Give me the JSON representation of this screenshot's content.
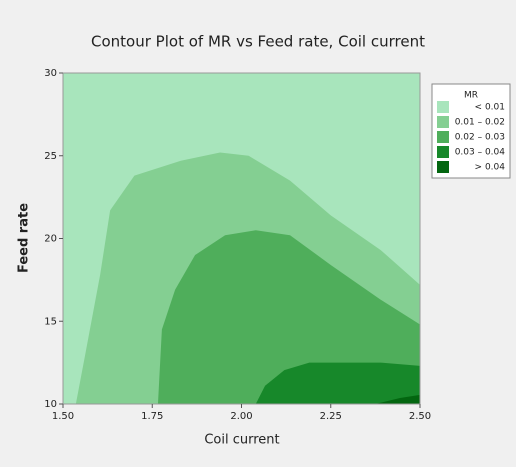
{
  "chart_data": {
    "type": "contour",
    "title": "Contour Plot of MR vs Feed rate, Coil current",
    "xlabel": "Coil current",
    "ylabel": "Feed rate",
    "xlim": [
      1.5,
      2.5
    ],
    "ylim": [
      10,
      30
    ],
    "xticks": [
      {
        "value": 1.5,
        "label": "1.50"
      },
      1.75,
      {
        "value": 2,
        "label": "2.00"
      },
      2.25,
      {
        "value": 2.5,
        "label": "2.50"
      }
    ],
    "yticks": [
      10,
      15,
      20,
      25,
      30
    ],
    "legend_title": "MR",
    "series": [
      {
        "name": "< 0.01",
        "color": "#a8e5bc"
      },
      {
        "name": "0.01 – 0.02",
        "color": "#84cf92",
        "x": [
          1.536,
          1.562,
          1.604,
          1.632,
          1.7,
          1.83,
          1.94,
          2.02,
          2.136,
          2.25,
          2.39,
          2.5,
          2.5
        ],
        "y": [
          10,
          12.96,
          17.8,
          21.7,
          23.8,
          24.7,
          25.2,
          25.0,
          23.5,
          21.4,
          19.3,
          17.2,
          10
        ]
      },
      {
        "name": "0.02 – 0.03",
        "color": "#4fae5b",
        "x": [
          1.766,
          1.777,
          1.814,
          1.87,
          1.954,
          2.04,
          2.136,
          2.25,
          2.39,
          2.5,
          2.5
        ],
        "y": [
          10,
          14.5,
          16.9,
          19.0,
          20.2,
          20.5,
          20.2,
          18.4,
          16.3,
          14.8,
          10
        ]
      },
      {
        "name": "0.03 – 0.04",
        "color": "#17882a",
        "x": [
          2.04,
          2.066,
          2.12,
          2.19,
          2.29,
          2.39,
          2.5,
          2.5
        ],
        "y": [
          10,
          11.1,
          12.05,
          12.5,
          12.5,
          12.5,
          12.3,
          10
        ]
      },
      {
        "name": "> 0.04",
        "color": "#036610",
        "x": [
          2.374,
          2.444,
          2.5,
          2.5
        ],
        "y": [
          10,
          10.36,
          10.55,
          10
        ]
      }
    ]
  }
}
